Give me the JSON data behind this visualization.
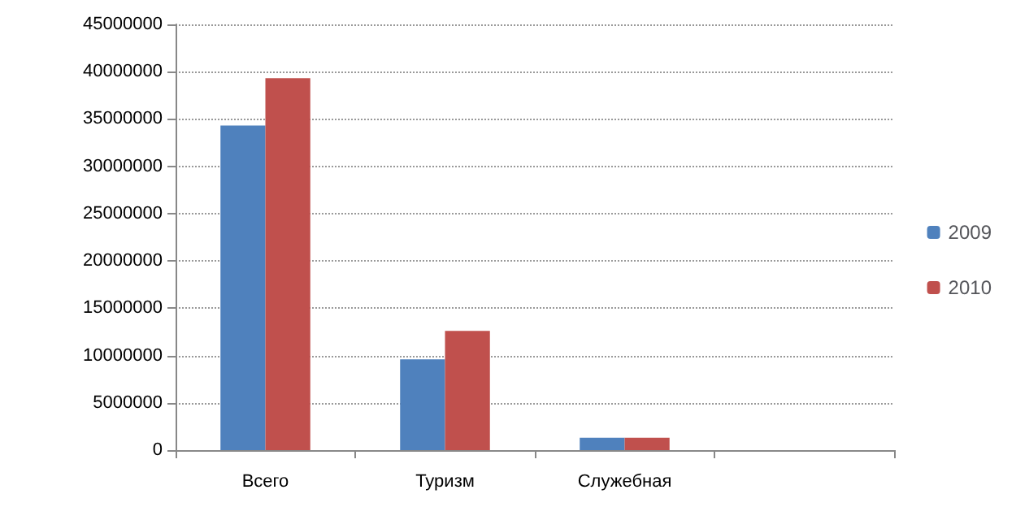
{
  "chart_data": {
    "type": "bar",
    "categories": [
      "Всего",
      "Туризм",
      "Служебная",
      null
    ],
    "series": [
      {
        "name": "2009",
        "color": "#4f81bd",
        "values": [
          34300000,
          9600000,
          1300000,
          null
        ]
      },
      {
        "name": "2010",
        "color": "#c0504d",
        "values": [
          39300000,
          12600000,
          1300000,
          null
        ]
      }
    ],
    "ylim": [
      0,
      45000000
    ],
    "yticks": [
      0,
      5000000,
      10000000,
      15000000,
      20000000,
      25000000,
      30000000,
      35000000,
      40000000,
      45000000
    ],
    "grid": "y",
    "legend": "right"
  }
}
